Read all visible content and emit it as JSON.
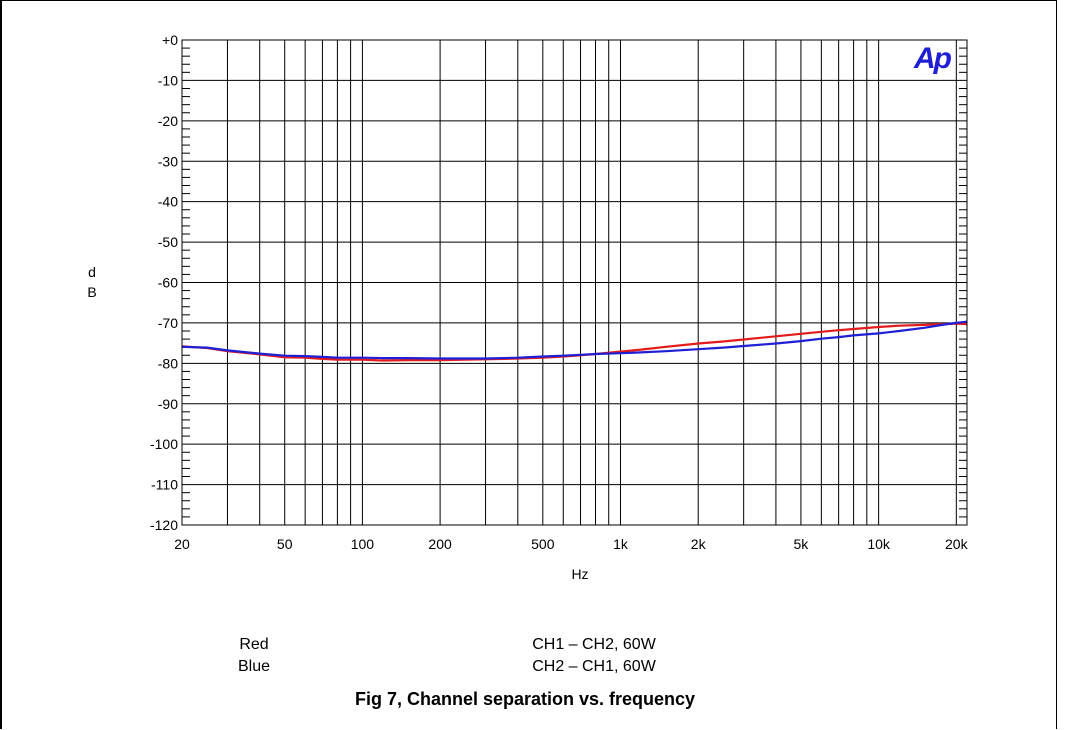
{
  "logo": {
    "text": "Ap",
    "color": "#1f1fd6"
  },
  "y_axis": {
    "label_line1": "d",
    "label_line2": "B"
  },
  "x_axis": {
    "label": "Hz"
  },
  "legend": [
    {
      "name": "Red",
      "desc": "CH1 – CH2, 60W",
      "color": "#e31b1b"
    },
    {
      "name": "Blue",
      "desc": "CH2 – CH1, 60W",
      "color": "#1f1fd6"
    }
  ],
  "caption": "Fig 7, Channel separation vs. frequency",
  "chart_data": {
    "type": "line",
    "title": "",
    "xlabel": "Hz",
    "ylabel": "dB",
    "x_scale": "log",
    "xlim": [
      20,
      22000
    ],
    "ylim": [
      -120,
      0
    ],
    "grid": true,
    "y_ticks": [
      {
        "value": 0,
        "label": "+0"
      },
      {
        "value": -10,
        "label": "-10"
      },
      {
        "value": -20,
        "label": "-20"
      },
      {
        "value": -30,
        "label": "-30"
      },
      {
        "value": -40,
        "label": "-40"
      },
      {
        "value": -50,
        "label": "-50"
      },
      {
        "value": -60,
        "label": "-60"
      },
      {
        "value": -70,
        "label": "-70"
      },
      {
        "value": -80,
        "label": "-80"
      },
      {
        "value": -90,
        "label": "-90"
      },
      {
        "value": -100,
        "label": "-100"
      },
      {
        "value": -110,
        "label": "-110"
      },
      {
        "value": -120,
        "label": "-120"
      }
    ],
    "x_ticks": [
      {
        "value": 20,
        "label": "20"
      },
      {
        "value": 50,
        "label": "50"
      },
      {
        "value": 100,
        "label": "100"
      },
      {
        "value": 200,
        "label": "200"
      },
      {
        "value": 500,
        "label": "500"
      },
      {
        "value": 1000,
        "label": "1k"
      },
      {
        "value": 2000,
        "label": "2k"
      },
      {
        "value": 5000,
        "label": "5k"
      },
      {
        "value": 10000,
        "label": "10k"
      },
      {
        "value": 20000,
        "label": "20k"
      }
    ],
    "series": [
      {
        "name": "Red",
        "color": "#e31b1b",
        "x": [
          20,
          25,
          30,
          40,
          50,
          60,
          70,
          80,
          100,
          120,
          150,
          200,
          250,
          300,
          400,
          500,
          600,
          700,
          800,
          1000,
          1200,
          1500,
          2000,
          2500,
          3000,
          4000,
          5000,
          6000,
          7000,
          8000,
          10000,
          12000,
          15000,
          20000,
          22000
        ],
        "y": [
          -75.8,
          -76.2,
          -77.0,
          -77.8,
          -78.5,
          -78.6,
          -78.9,
          -79.1,
          -79.1,
          -79.3,
          -79.2,
          -79.2,
          -79.1,
          -79.0,
          -78.8,
          -78.6,
          -78.3,
          -78.0,
          -77.7,
          -77.1,
          -76.6,
          -75.9,
          -75.1,
          -74.6,
          -74.1,
          -73.3,
          -72.7,
          -72.2,
          -71.8,
          -71.5,
          -71.0,
          -70.7,
          -70.5,
          -70.2,
          -70.3
        ]
      },
      {
        "name": "Blue",
        "color": "#1f1fd6",
        "x": [
          20,
          25,
          30,
          40,
          50,
          60,
          70,
          80,
          100,
          120,
          150,
          200,
          250,
          300,
          400,
          500,
          600,
          700,
          800,
          1000,
          1200,
          1500,
          2000,
          2500,
          3000,
          4000,
          5000,
          6000,
          7000,
          8000,
          10000,
          12000,
          15000,
          18000,
          20000,
          22000
        ],
        "y": [
          -75.9,
          -76.1,
          -76.8,
          -77.6,
          -78.1,
          -78.2,
          -78.4,
          -78.6,
          -78.6,
          -78.7,
          -78.7,
          -78.8,
          -78.8,
          -78.8,
          -78.6,
          -78.3,
          -78.1,
          -77.9,
          -77.7,
          -77.5,
          -77.3,
          -77.0,
          -76.5,
          -76.1,
          -75.7,
          -75.1,
          -74.5,
          -73.9,
          -73.5,
          -73.1,
          -72.6,
          -72.0,
          -71.2,
          -70.4,
          -70.0,
          -69.7
        ]
      }
    ]
  }
}
